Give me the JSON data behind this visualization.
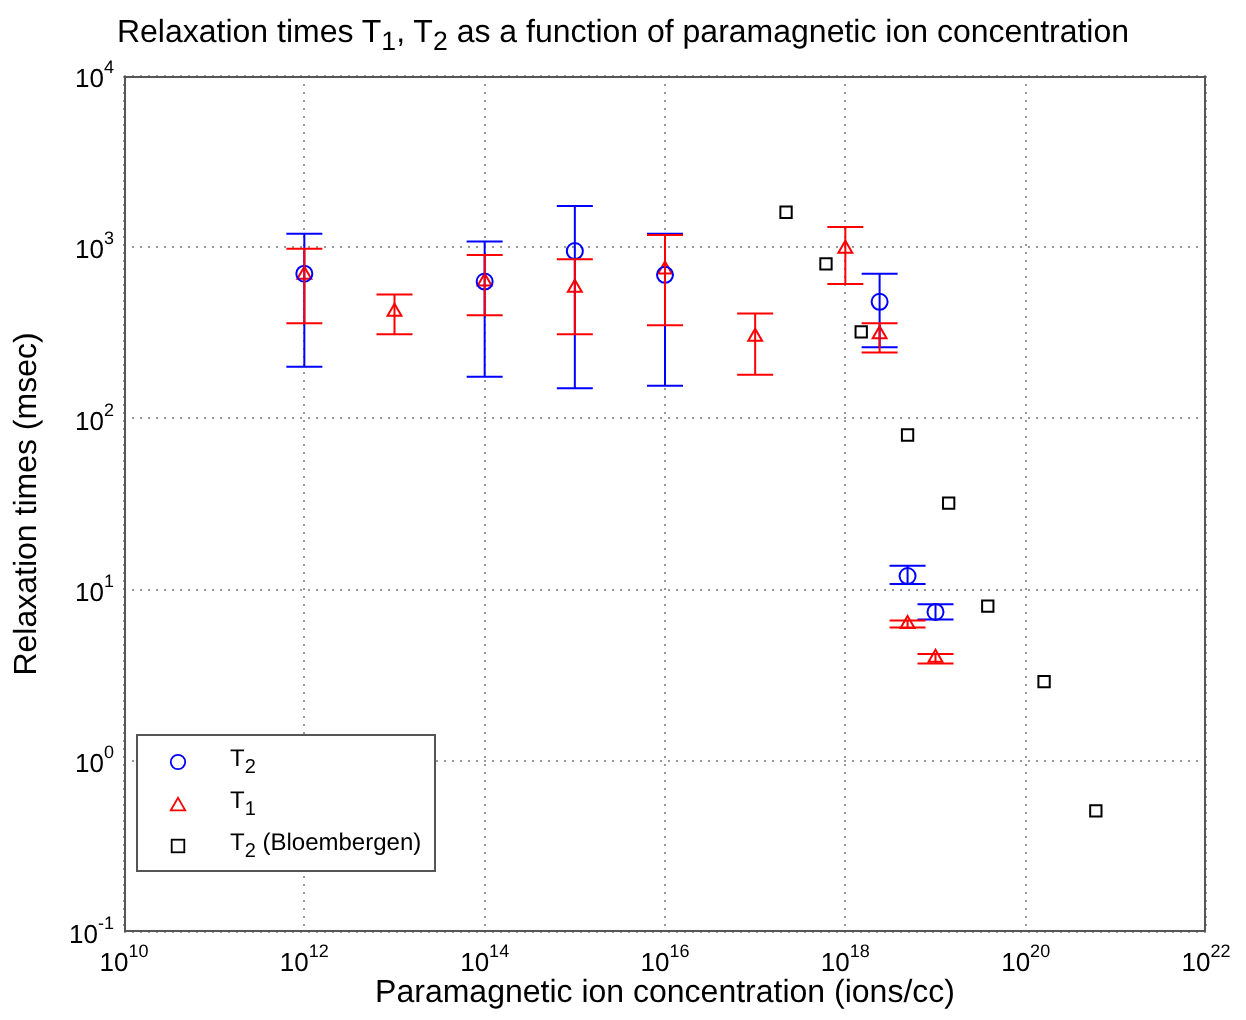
{
  "chart_data": {
    "type": "scatter",
    "title": "Relaxation times T$_{1}$, T$_{2}$ as a function of paramagnetic ion concentration",
    "xlabel": "Paramagnetic ion concentration (ions/cc)",
    "ylabel": "Relaxation times (msec)",
    "log": "xy",
    "grid": true,
    "legend": "bottom left",
    "xlim": [
      10000000000.0,
      1e+22
    ],
    "xticks": [
      {
        "value": 10000000000.0,
        "label": "10$^{10}$"
      },
      {
        "value": 1000000000000.0,
        "label": "10$^{12}$"
      },
      {
        "value": 100000000000000.0,
        "label": "10$^{14}$"
      },
      {
        "value": 1e+16,
        "label": "10$^{16}$"
      },
      {
        "value": 1e+18,
        "label": "10$^{18}$"
      },
      {
        "value": 1e+20,
        "label": "10$^{20}$"
      },
      {
        "value": 1e+22,
        "label": "10$^{22}$"
      }
    ],
    "ylim": [
      0.1,
      10000
    ],
    "yticks": [
      {
        "value": 0.1,
        "label": "10$^{-1}$"
      },
      {
        "value": 1,
        "label": "10$^{0}$"
      },
      {
        "value": 10,
        "label": "10$^{1}$"
      },
      {
        "value": 100,
        "label": "10$^{2}$"
      },
      {
        "value": 1000,
        "label": "10$^{3}$"
      },
      {
        "value": 10000,
        "label": "10$^{4}$"
      }
    ],
    "series": [
      {
        "name": "T$_{2}$",
        "color": "#0000ff",
        "marker": "circle",
        "x": [
          1000000000000.0,
          100000000000000.0,
          1000000000000000.0,
          1e+16,
          2.4e+18,
          4.9e+18,
          1e+19
        ],
        "values": [
          700,
          630,
          950,
          690,
          480,
          12,
          7.4
        ],
        "errors": [
          [
            200,
            1200
          ],
          [
            175,
            1080
          ],
          [
            150,
            1740
          ],
          [
            155,
            1200
          ],
          [
            260,
            700
          ],
          [
            10.8,
            13.8
          ],
          [
            6.7,
            8.2
          ]
        ]
      },
      {
        "name": "T$_{1}$",
        "color": "#ff0000",
        "marker": "triangle",
        "x": [
          1000000000000.0,
          10000000000000.0,
          100000000000000.0,
          1000000000000000.0,
          1e+16,
          1e+17,
          1e+18,
          2.4e+18,
          4.9e+18,
          1e+19
        ],
        "values": [
          690,
          420,
          630,
          580,
          740,
          300,
          980,
          310,
          6.3,
          4.0
        ],
        "errors": [
          [
            360,
            980
          ],
          [
            310,
            530
          ],
          [
            400,
            900
          ],
          [
            310,
            850
          ],
          [
            350,
            1180
          ],
          [
            180,
            410
          ],
          [
            610,
            1310
          ],
          [
            243,
            360
          ],
          [
            6.0,
            6.6
          ],
          [
            3.7,
            4.2
          ]
        ]
      },
      {
        "name": "T$_{2}$ (Bloembergen)",
        "color": "#000000",
        "marker": "square",
        "x": [
          2.2e+17,
          6.1e+17,
          1.5e+18,
          4.9e+18,
          1.4e+19,
          3.8e+19,
          1.6e+20,
          6e+20
        ],
        "values": [
          1600,
          800,
          320,
          80,
          32,
          8,
          2.9,
          0.51
        ]
      }
    ]
  }
}
